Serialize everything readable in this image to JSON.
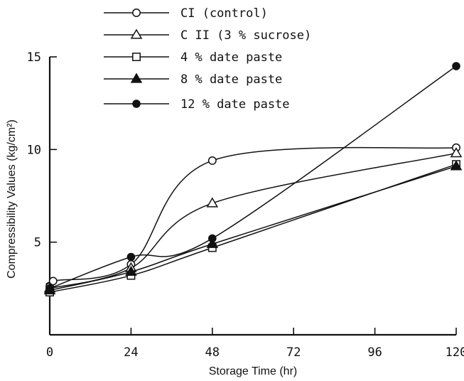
{
  "chart_data": {
    "type": "line",
    "xlabel": "Storage Time (hr)",
    "ylabel": "Compressibility Values (kg/cm²)",
    "xlim": [
      0,
      120
    ],
    "ylim": [
      0,
      15
    ],
    "x_ticks": [
      0,
      24,
      48,
      72,
      96,
      120
    ],
    "y_ticks": [
      5,
      10,
      15
    ],
    "grid": false,
    "legend_position": "top-left",
    "series": [
      {
        "name": "CI (control)",
        "marker": "open-circle",
        "x": [
          0,
          1,
          24,
          48,
          120
        ],
        "y": [
          2.6,
          2.9,
          3.8,
          9.4,
          10.1
        ]
      },
      {
        "name": "CII (3% sucrose)",
        "marker": "open-triangle",
        "x": [
          0,
          24,
          48,
          120
        ],
        "y": [
          2.5,
          3.6,
          7.1,
          9.8
        ]
      },
      {
        "name": "4% date paste",
        "marker": "open-square",
        "x": [
          0,
          24,
          48,
          120
        ],
        "y": [
          2.3,
          3.2,
          4.7,
          9.2
        ]
      },
      {
        "name": "8% date paste",
        "marker": "filled-triangle",
        "x": [
          0,
          24,
          48,
          120
        ],
        "y": [
          2.4,
          3.4,
          4.9,
          9.1
        ]
      },
      {
        "name": "12% date paste",
        "marker": "filled-circle",
        "x": [
          0,
          24,
          48,
          120
        ],
        "y": [
          2.5,
          4.2,
          5.2,
          14.5
        ]
      }
    ]
  },
  "legend_labels": [
    "CI (control)",
    "C II (3 % sucrose)",
    "4 % date paste",
    "8 % date paste",
    "12 % date paste"
  ]
}
